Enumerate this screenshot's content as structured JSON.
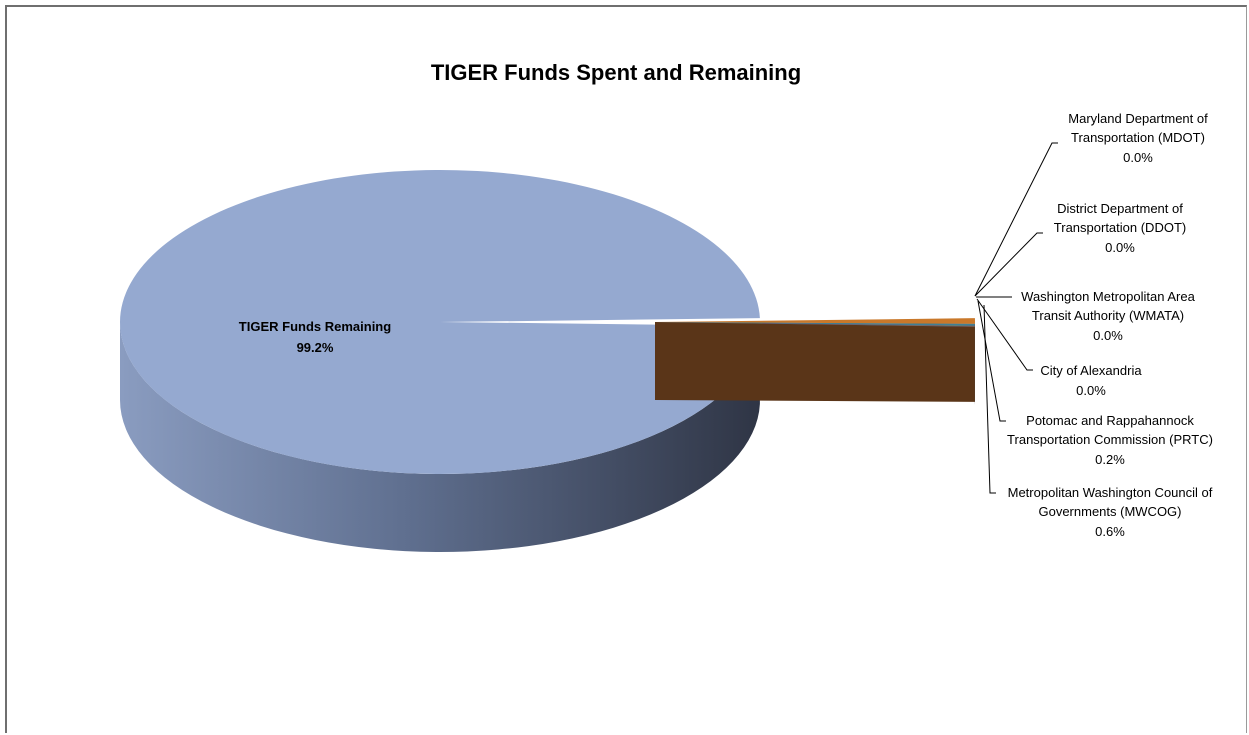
{
  "chart_data": {
    "type": "pie",
    "title": "TIGER Funds Spent and Remaining",
    "slices": [
      {
        "name": "TIGER Funds Remaining",
        "value": 99.2,
        "label": "99.2%",
        "color": "#95a9d0",
        "side_color": "#5a6a88",
        "inner": true
      },
      {
        "name": "Metropolitan Washington Council of Governments (MWCOG)",
        "value": 0.6,
        "label": "0.6%",
        "color": "#c9782a",
        "side_color": "#5a3518"
      },
      {
        "name": "Potomac and Rappahannock Transportation Commission (PRTC)",
        "value": 0.2,
        "label": "0.2%",
        "color": "#3f7f96",
        "side_color": "#1f4756"
      },
      {
        "name": "City of Alexandria",
        "value": 0.0,
        "label": "0.0%",
        "color": "#8064a2",
        "side_color": "#4a3a60"
      },
      {
        "name": "Washington Metropolitan Area Transit Authority (WMATA)",
        "value": 0.0,
        "label": "0.0%",
        "color": "#9bbb59",
        "side_color": "#566a30"
      },
      {
        "name": "District Department of Transportation (DDOT)",
        "value": 0.0,
        "label": "0.0%",
        "color": "#c0504d",
        "side_color": "#6a2b29"
      },
      {
        "name": "Maryland Department of Transportation (MDOT)",
        "value": 0.0,
        "label": "0.0%",
        "color": "#4f81bd",
        "side_color": "#2b4768"
      }
    ]
  },
  "labels": {
    "remaining_name": "TIGER Funds Remaining",
    "remaining_pct": "99.2%",
    "mdot_line1": "Maryland Department of",
    "mdot_line2": "Transportation (MDOT)",
    "mdot_pct": "0.0%",
    "ddot_line1": "District Department of",
    "ddot_line2": "Transportation (DDOT)",
    "ddot_pct": "0.0%",
    "wmata_line1": "Washington Metropolitan Area",
    "wmata_line2": "Transit Authority (WMATA)",
    "wmata_pct": "0.0%",
    "alex_line1": "City of Alexandria",
    "alex_pct": "0.0%",
    "prtc_line1": "Potomac and Rappahannock",
    "prtc_line2": "Transportation Commission (PRTC)",
    "prtc_pct": "0.2%",
    "mwcog_line1": "Metropolitan Washington Council of",
    "mwcog_line2": "Governments (MWCOG)",
    "mwcog_pct": "0.6%"
  }
}
